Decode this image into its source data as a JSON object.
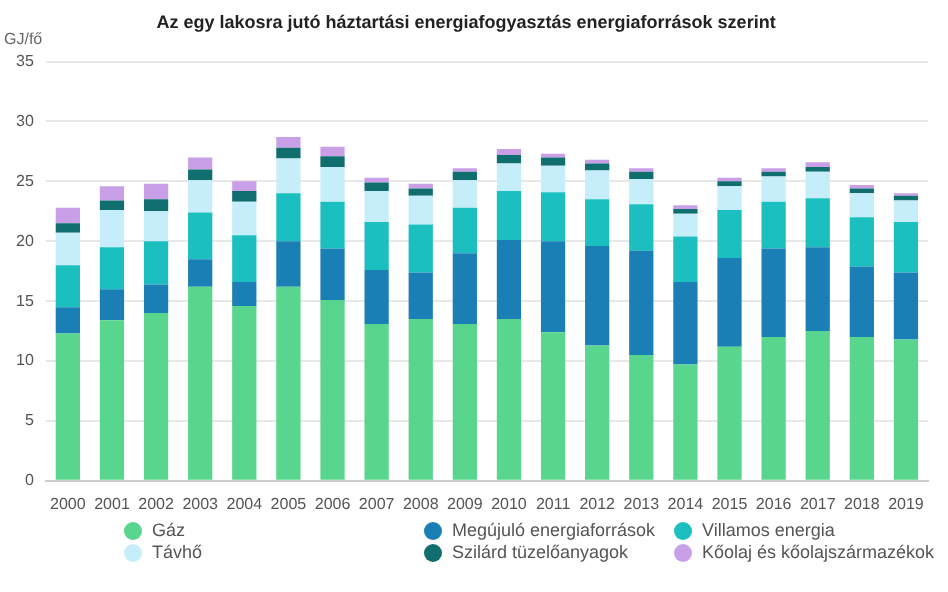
{
  "chart_data": {
    "type": "bar",
    "title": "Az egy lakosra jutó háztartási energiafogyasztás energiaforrások szerint",
    "ylabel": "GJ/fő",
    "stacked": true,
    "grid": "y",
    "legend": "bottom",
    "categories": [
      "2000",
      "2001",
      "2002",
      "2003",
      "2004",
      "2005",
      "2006",
      "2007",
      "2008",
      "2009",
      "2010",
      "2011",
      "2012",
      "2013",
      "2014",
      "2015",
      "2016",
      "2017",
      "2018",
      "2019"
    ],
    "ylim": [
      0,
      35
    ],
    "yticks": [
      0,
      5,
      10,
      15,
      20,
      25,
      30,
      35
    ],
    "series": [
      {
        "name": "Gáz",
        "color": "#58d68d",
        "values": [
          12.3,
          13.4,
          14.0,
          16.2,
          14.6,
          16.2,
          15.1,
          13.1,
          13.5,
          13.1,
          13.5,
          12.4,
          11.3,
          10.5,
          9.7,
          11.2,
          12.0,
          12.5,
          12.0,
          11.8
        ]
      },
      {
        "name": "Megújuló energiaforrások",
        "color": "#1a7fb5",
        "values": [
          2.2,
          2.6,
          2.4,
          2.3,
          2.0,
          3.8,
          4.3,
          4.5,
          3.9,
          5.9,
          6.6,
          7.6,
          8.3,
          8.7,
          6.9,
          7.4,
          7.4,
          7.0,
          5.9,
          5.6
        ]
      },
      {
        "name": "Villamos energia",
        "color": "#1cbfbf",
        "values": [
          3.5,
          3.5,
          3.6,
          3.9,
          3.9,
          4.0,
          3.9,
          4.0,
          4.0,
          3.8,
          4.1,
          4.1,
          3.9,
          3.9,
          3.8,
          4.0,
          3.9,
          4.1,
          4.1,
          4.2
        ]
      },
      {
        "name": "Távhő",
        "color": "#c6eefa",
        "values": [
          2.7,
          3.1,
          2.5,
          2.7,
          2.8,
          2.9,
          2.9,
          2.6,
          2.4,
          2.3,
          2.3,
          2.2,
          2.4,
          2.1,
          1.9,
          2.0,
          2.1,
          2.2,
          2.0,
          1.8
        ]
      },
      {
        "name": "Szilárd tüzelőanyagok",
        "color": "#106e6e",
        "values": [
          0.8,
          0.8,
          1.0,
          0.9,
          0.9,
          0.9,
          0.9,
          0.7,
          0.6,
          0.7,
          0.7,
          0.7,
          0.6,
          0.6,
          0.4,
          0.4,
          0.4,
          0.4,
          0.4,
          0.4
        ]
      },
      {
        "name": "Kőolaj és kőolajszármazékok",
        "color": "#c9a0e8",
        "values": [
          1.3,
          1.2,
          1.3,
          1.0,
          0.8,
          0.9,
          0.8,
          0.4,
          0.4,
          0.3,
          0.5,
          0.3,
          0.3,
          0.3,
          0.3,
          0.3,
          0.3,
          0.4,
          0.3,
          0.2
        ]
      }
    ]
  }
}
